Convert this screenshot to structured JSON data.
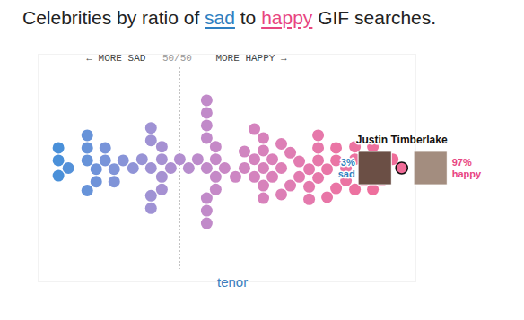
{
  "chart_data": {
    "type": "beeswarm",
    "title": "Celebrities by ratio of sad to happy GIF searches.",
    "title_highlights": [
      {
        "text": "sad",
        "color": "#2e7fc1"
      },
      {
        "text": "happy",
        "color": "#e8457f"
      }
    ],
    "xlim": [
      20,
      100
    ],
    "xticks": [
      {
        "value": 50,
        "label": "50/50"
      }
    ],
    "annotations": {
      "left": "← MORE SAD",
      "right": "MORE HAPPY →"
    },
    "source": "tenor",
    "values": [
      97,
      95.1,
      92.8,
      92.8,
      90.9,
      90.9,
      90.9,
      89.0,
      89.0,
      87.1,
      87.1,
      87.1,
      85.2,
      85.2,
      83.1,
      83.1,
      83.1,
      81.2,
      81.2,
      79.3,
      79.3,
      79.3,
      79.3,
      77.4,
      77.4,
      77.4,
      75.3,
      75.3,
      73.4,
      73.4,
      71.5,
      71.5,
      71.5,
      69.6,
      69.6,
      67.7,
      67.7,
      67.7,
      67.7,
      67.7,
      65.8,
      65.8,
      65.8,
      63.7,
      63.7,
      61.8,
      59.5,
      57.6,
      57.6,
      57.6,
      57.6,
      55.7,
      55.7,
      55.7,
      55.7,
      55.7,
      55.7,
      55.7,
      55.7,
      53.8,
      51.9,
      50.0,
      48.1,
      46.2,
      46.2,
      46.2,
      46.2,
      43.9,
      43.9,
      43.9,
      43.9,
      43.9,
      42.0,
      40.1,
      38.0,
      36.1,
      36.1,
      34.2,
      34.2,
      32.3,
      32.3,
      30.4,
      30.4,
      30.4,
      30.4,
      26.4,
      24.3,
      24.3,
      24.3
    ],
    "highlight": {
      "name": "Justin Timberlake",
      "sad": {
        "value": 3,
        "label": "3%",
        "text": "sad",
        "color": "#2e7fc1"
      },
      "happy": {
        "value": 97,
        "label": "97%",
        "text": "happy",
        "color": "#e8457f"
      }
    }
  }
}
